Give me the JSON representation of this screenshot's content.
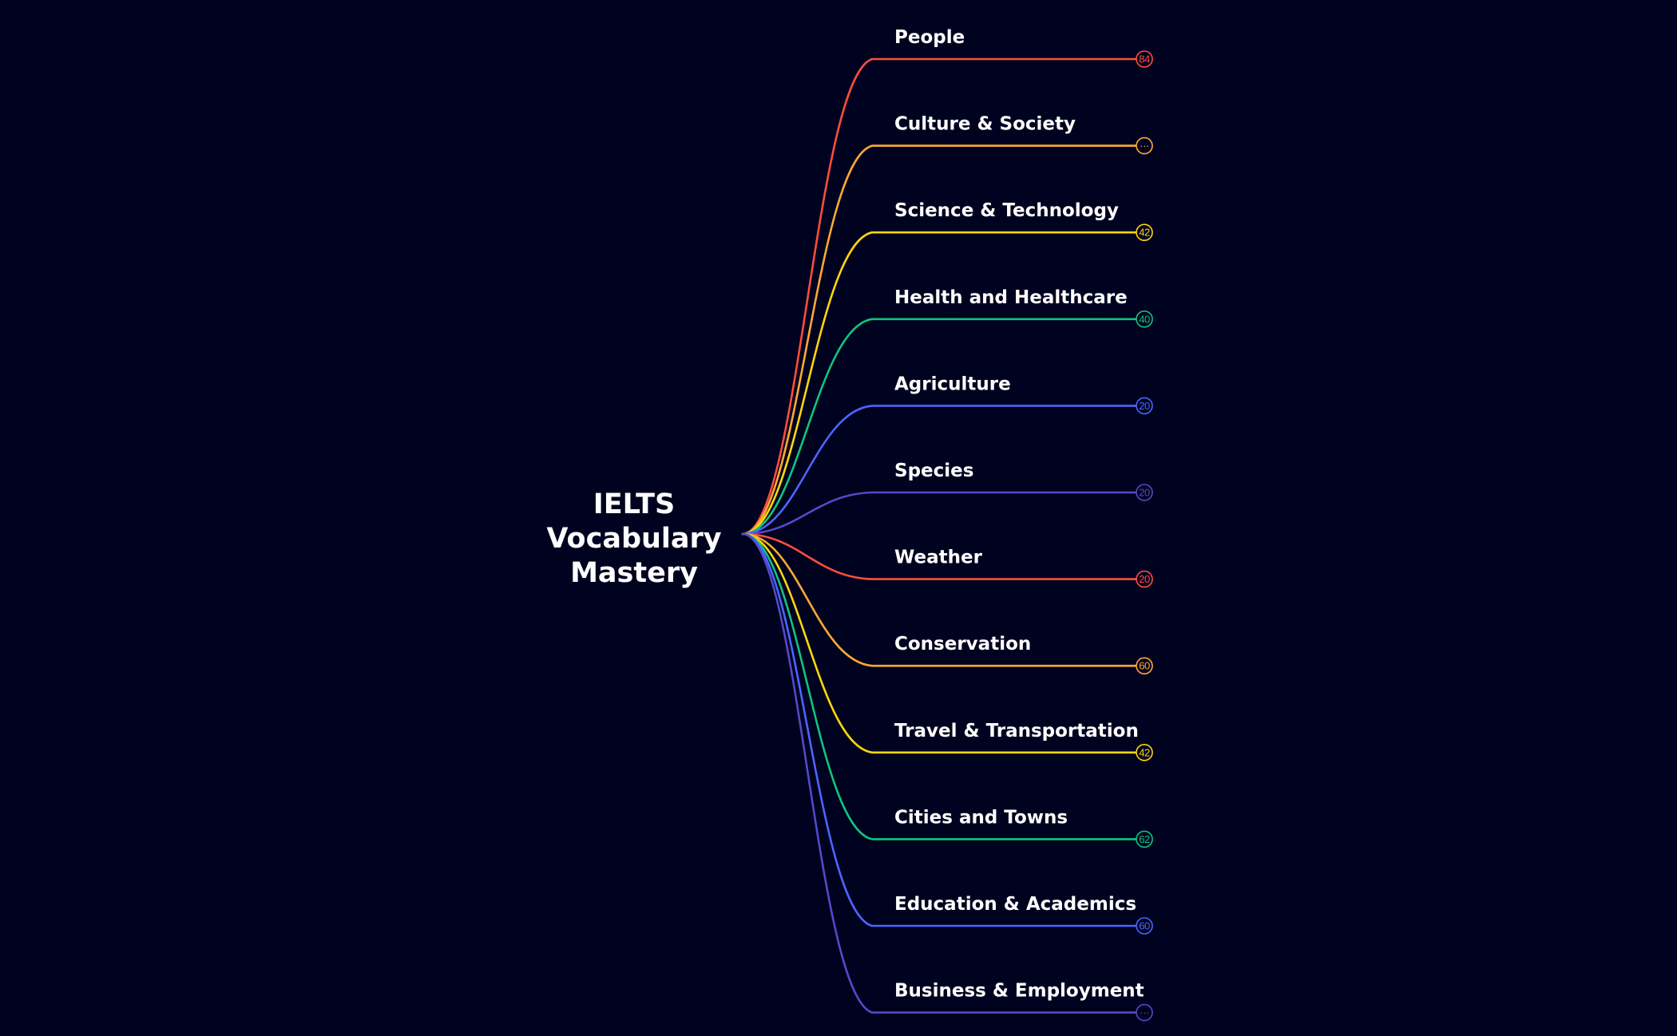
{
  "mindmap": {
    "root": {
      "lines": [
        "IELTS",
        "Vocabulary",
        "Mastery"
      ]
    },
    "branches": [
      {
        "label": "People",
        "count": "84",
        "color": "#ff4d3d"
      },
      {
        "label": "Culture & Society",
        "count": "···",
        "color": "#ffaa33"
      },
      {
        "label": "Science & Technology",
        "count": "42",
        "color": "#ffd60a"
      },
      {
        "label": "Health and Healthcare",
        "count": "40",
        "color": "#10c47e"
      },
      {
        "label": "Agriculture",
        "count": "20",
        "color": "#4d65ff"
      },
      {
        "label": "Species",
        "count": "20",
        "color": "#5549c9"
      },
      {
        "label": "Weather",
        "count": "20",
        "color": "#ff4d3d"
      },
      {
        "label": "Conservation",
        "count": "60",
        "color": "#ffaa33"
      },
      {
        "label": "Travel & Transportation",
        "count": "42",
        "color": "#ffd60a"
      },
      {
        "label": "Cities and Towns",
        "count": "62",
        "color": "#10c47e"
      },
      {
        "label": "Education & Academics",
        "count": "60",
        "color": "#4d65ff"
      },
      {
        "label": "Business & Employment",
        "count": "···",
        "color": "#5549c9"
      }
    ]
  }
}
